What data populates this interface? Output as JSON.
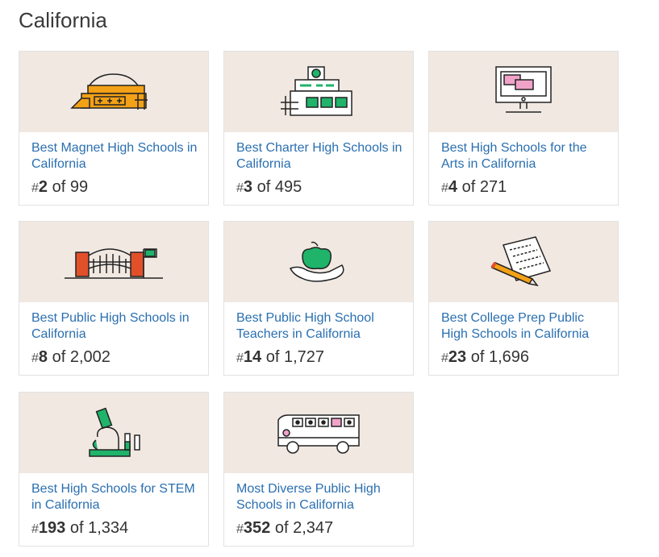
{
  "heading": "California",
  "cards": [
    {
      "title": "Best Magnet High Schools in California",
      "rank_prefix": "#",
      "rank": "2",
      "of_text": "of 99",
      "icon": "magnet-school-icon"
    },
    {
      "title": "Best Charter High Schools in California",
      "rank_prefix": "#",
      "rank": "3",
      "of_text": "of 495",
      "icon": "charter-school-icon"
    },
    {
      "title": "Best High Schools for the Arts in California",
      "rank_prefix": "#",
      "rank": "4",
      "of_text": "of 271",
      "icon": "computer-arts-icon"
    },
    {
      "title": "Best Public High Schools in California",
      "rank_prefix": "#",
      "rank": "8",
      "of_text": "of 2,002",
      "icon": "public-school-bridge-icon"
    },
    {
      "title": "Best Public High School Teachers in California",
      "rank_prefix": "#",
      "rank": "14",
      "of_text": "of 1,727",
      "icon": "apple-hand-icon"
    },
    {
      "title": "Best College Prep Public High Schools in California",
      "rank_prefix": "#",
      "rank": "23",
      "of_text": "of 1,696",
      "icon": "pencil-paper-icon"
    },
    {
      "title": "Best High Schools for STEM in California",
      "rank_prefix": "#",
      "rank": "193",
      "of_text": "of 1,334",
      "icon": "microscope-icon"
    },
    {
      "title": "Most Diverse Public High Schools in California",
      "rank_prefix": "#",
      "rank": "352",
      "of_text": "of 2,347",
      "icon": "school-bus-icon"
    }
  ],
  "colors": {
    "link": "#2a6fb0",
    "art_bg": "#f1e8e2",
    "green": "#1fb46a",
    "orange": "#f3a116",
    "red": "#e2502a",
    "pink": "#f0a2c9"
  }
}
